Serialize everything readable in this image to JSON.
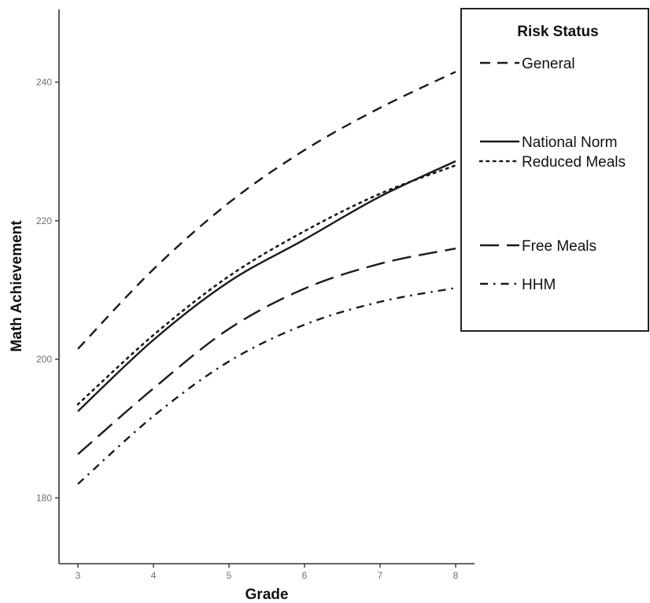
{
  "chart_data": {
    "type": "line",
    "xlabel": "Grade",
    "ylabel": "Math Achievement",
    "x": [
      3,
      4,
      5,
      6,
      7,
      8
    ],
    "x_ticks": [
      "3",
      "4",
      "5",
      "6",
      "7",
      "8"
    ],
    "y_ticks": [
      "180",
      "200",
      "220",
      "240"
    ],
    "xlim": [
      2.75,
      8.25
    ],
    "ylim": [
      170.5,
      250.5
    ],
    "grid": false,
    "legend": {
      "title": "Risk Status",
      "position": "right"
    },
    "series": [
      {
        "name": "General",
        "style": "dashed",
        "values": [
          201.5,
          213.0,
          222.6,
          230.2,
          236.3,
          241.5
        ]
      },
      {
        "name": "National Norm",
        "style": "solid",
        "values": [
          192.5,
          202.8,
          211.2,
          217.3,
          223.5,
          228.6
        ]
      },
      {
        "name": "Reduced Meals",
        "style": "dotted",
        "values": [
          193.5,
          203.5,
          212.0,
          218.5,
          223.9,
          228.0
        ]
      },
      {
        "name": "Free Meals",
        "style": "long-dash",
        "values": [
          186.3,
          195.8,
          204.4,
          210.2,
          213.8,
          216.0
        ]
      },
      {
        "name": "HHM",
        "style": "dash-dot",
        "values": [
          182.0,
          191.8,
          199.7,
          205.0,
          208.3,
          210.3
        ]
      }
    ],
    "colors": {
      "lines": "#1a1a1a",
      "axis": "#333333",
      "tick_text": "#6f6f6f"
    }
  }
}
